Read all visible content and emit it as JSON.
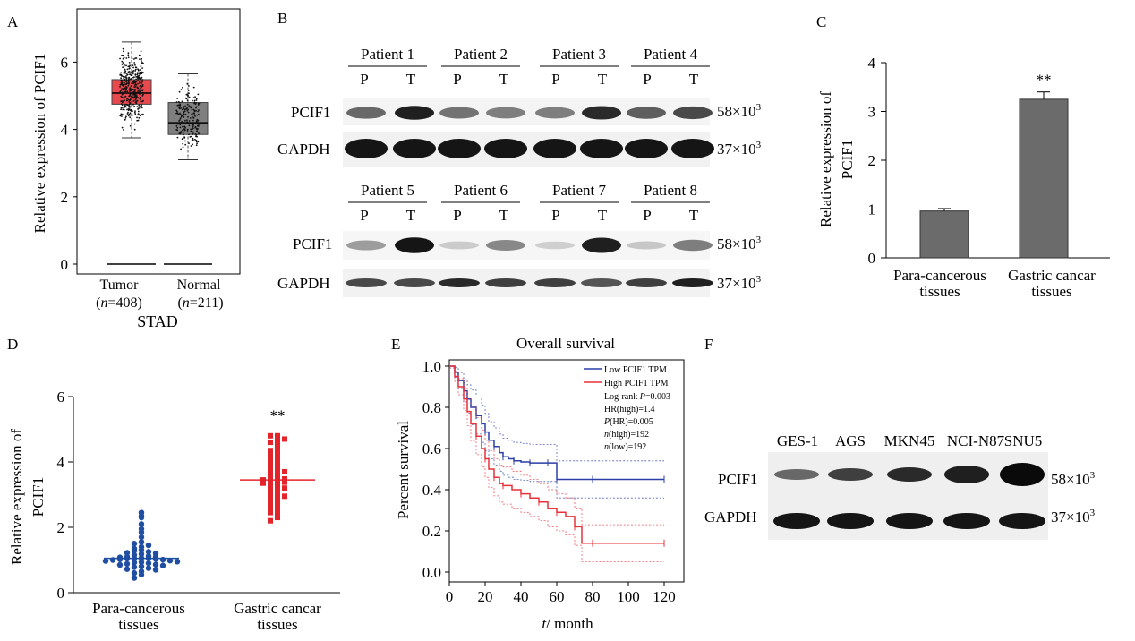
{
  "panel_labels": [
    "A",
    "B",
    "C",
    "D",
    "E",
    "F"
  ],
  "units": {
    "kda_58": "58×10",
    "kda_37": "37×10",
    "exp": "3"
  },
  "blot_b": {
    "row1_patients": [
      "Patient 1",
      "Patient 2",
      "Patient 3",
      "Patient 4"
    ],
    "row2_patients": [
      "Patient 5",
      "Patient 6",
      "Patient 7",
      "Patient 8"
    ],
    "lanes": [
      "P",
      "T"
    ],
    "row_labels": [
      "PCIF1",
      "GAPDH"
    ]
  },
  "blot_f": {
    "cell_lines": [
      "GES-1",
      "AGS",
      "MKN45",
      "NCI-N87",
      "SNU5"
    ],
    "row_labels": [
      "PCIF1",
      "GAPDH"
    ]
  },
  "chart_data": [
    {
      "panel": "A",
      "type": "box",
      "ylabel": "Relative expression of PCIF1",
      "xlabel": "STAD",
      "categories": [
        "Tumor",
        "Normal"
      ],
      "n_labels": [
        "(n=408)",
        "(n=211)"
      ],
      "n_italic": "n",
      "n_values": [
        "=408)",
        "=211)"
      ],
      "ylim": [
        -0.3,
        7.6
      ],
      "yticks": [
        0,
        2,
        4,
        6
      ],
      "boxes": [
        {
          "name": "Tumor",
          "q1": 4.75,
          "median": 5.08,
          "q3": 5.48,
          "whisker_low": 3.75,
          "whisker_high": 6.6,
          "color": "#e8494f"
        },
        {
          "name": "Normal",
          "q1": 3.85,
          "median": 4.2,
          "q3": 4.8,
          "whisker_low": 3.1,
          "whisker_high": 5.65,
          "color": "#7f7f7f"
        }
      ]
    },
    {
      "panel": "C",
      "type": "bar",
      "ylabel": "Relative expression of PCIF1",
      "ylabel_lines": [
        "Relative expression of",
        "PCIF1"
      ],
      "categories": [
        "Para-cancerous tissues",
        "Gastric cancar tissues"
      ],
      "category_lines": [
        [
          "Para-cancerous",
          "tissues"
        ],
        [
          "Gastric cancar",
          "tissues"
        ]
      ],
      "values": [
        0.96,
        3.25
      ],
      "errors": [
        0.05,
        0.15
      ],
      "significance": [
        "",
        "**"
      ],
      "ylim": [
        0,
        4
      ],
      "yticks": [
        0,
        1,
        2,
        3,
        4
      ]
    },
    {
      "panel": "D",
      "type": "scatter",
      "ylabel": "Relative expression of PCIF1",
      "ylabel_lines": [
        "Relative expression of",
        "PCIF1"
      ],
      "categories": [
        "Para-cancerous tissues",
        "Gastric cancar tissues"
      ],
      "category_lines": [
        [
          "Para-cancerous",
          "tissues"
        ],
        [
          "Gastric cancar",
          "tissues"
        ]
      ],
      "means": [
        1.05,
        3.45
      ],
      "significance": [
        "",
        "**"
      ],
      "ylim": [
        0,
        6
      ],
      "yticks": [
        0,
        2,
        4,
        6
      ],
      "series": [
        {
          "name": "Para-cancerous tissues",
          "color": "#1f4ea3",
          "values": [
            2.45,
            2.3,
            2.35,
            2.1,
            1.95,
            1.85,
            1.7,
            1.55,
            1.5,
            1.45,
            1.4,
            1.35,
            1.3,
            1.28,
            1.25,
            1.22,
            1.2,
            1.18,
            1.15,
            1.12,
            1.1,
            1.1,
            1.08,
            1.06,
            1.05,
            1.05,
            1.04,
            1.03,
            1.02,
            1.01,
            1.0,
            0.98,
            0.97,
            0.95,
            0.93,
            0.92,
            0.9,
            0.88,
            0.86,
            0.85,
            0.83,
            0.8,
            0.78,
            0.75,
            0.72,
            0.7,
            0.65,
            0.6,
            0.55,
            0.45
          ]
        },
        {
          "name": "Gastric cancar tissues",
          "color": "#e3242b",
          "values": [
            4.8,
            4.8,
            4.7,
            4.65,
            4.6,
            4.5,
            4.4,
            4.35,
            4.3,
            4.2,
            4.15,
            4.1,
            4.0,
            3.95,
            3.9,
            3.85,
            3.8,
            3.75,
            3.7,
            3.65,
            3.6,
            3.55,
            3.5,
            3.48,
            3.45,
            3.42,
            3.4,
            3.38,
            3.35,
            3.3,
            3.25,
            3.2,
            3.15,
            3.1,
            3.05,
            3.0,
            2.95,
            2.9,
            2.85,
            2.8,
            2.7,
            2.65,
            2.6,
            2.5,
            2.45,
            2.4,
            2.3,
            2.2
          ]
        }
      ]
    },
    {
      "panel": "E",
      "type": "line",
      "title": "Overall survival",
      "xlabel_italic": "t",
      "xlabel_rest": "/ month",
      "ylabel": "Percent survival",
      "xlim": [
        0,
        125
      ],
      "ylim": [
        -0.02,
        1.02
      ],
      "xticks": [
        0,
        20,
        40,
        60,
        80,
        100,
        120
      ],
      "yticks": [
        0.0,
        0.2,
        0.4,
        0.6,
        0.8,
        1.0
      ],
      "legend": [
        "Low PCIF1 TPM",
        "High PCIF1 TPM"
      ],
      "stats": [
        {
          "pre": "Log-rank ",
          "it": "P",
          "post": "=0.003"
        },
        {
          "pre": "HR(high)=1.4",
          "it": "",
          "post": ""
        },
        {
          "pre": "",
          "it": "P",
          "post": "(HR)=0.005"
        },
        {
          "pre": "",
          "it": "n",
          "post": "(high)=192"
        },
        {
          "pre": "",
          "it": "n",
          "post": "(low)=192"
        }
      ],
      "series": [
        {
          "name": "Low PCIF1 TPM",
          "color": "#2b3fa8",
          "x": [
            0,
            3,
            5,
            8,
            10,
            12,
            15,
            18,
            20,
            22,
            25,
            28,
            30,
            33,
            36,
            40,
            45,
            50,
            55,
            59,
            60,
            70,
            80,
            100,
            120
          ],
          "y": [
            1.0,
            0.97,
            0.93,
            0.88,
            0.84,
            0.8,
            0.76,
            0.72,
            0.68,
            0.64,
            0.61,
            0.58,
            0.56,
            0.55,
            0.54,
            0.535,
            0.53,
            0.53,
            0.53,
            0.53,
            0.45,
            0.45,
            0.45,
            0.45,
            0.45
          ]
        },
        {
          "name": "High PCIF1 TPM",
          "color": "#e8313a",
          "x": [
            0,
            3,
            5,
            8,
            10,
            12,
            15,
            18,
            20,
            22,
            25,
            28,
            30,
            35,
            40,
            45,
            50,
            55,
            60,
            65,
            70,
            74,
            80,
            100,
            120
          ],
          "y": [
            1.0,
            0.95,
            0.9,
            0.84,
            0.78,
            0.72,
            0.66,
            0.6,
            0.55,
            0.5,
            0.46,
            0.43,
            0.42,
            0.4,
            0.38,
            0.36,
            0.34,
            0.31,
            0.29,
            0.27,
            0.22,
            0.14,
            0.14,
            0.14,
            0.14
          ]
        }
      ]
    }
  ]
}
